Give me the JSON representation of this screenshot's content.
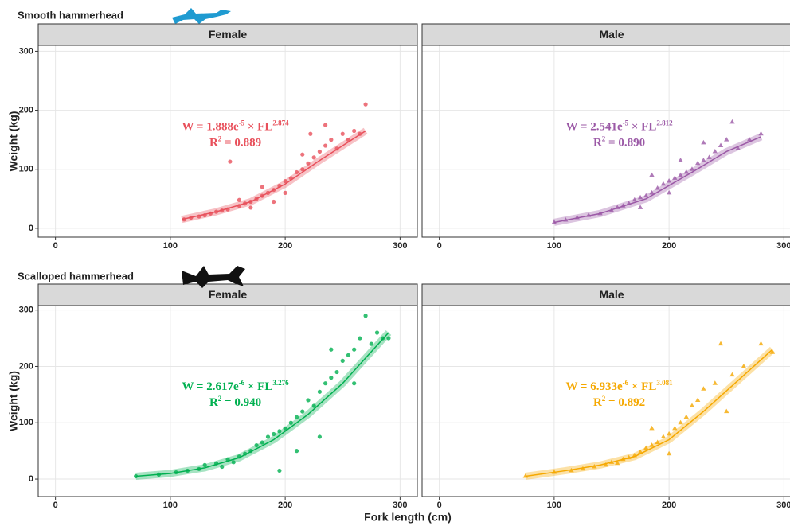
{
  "xlabel": "Fork length (cm)",
  "chart_data": [
    {
      "type": "scatter",
      "group": "Smooth hammerhead",
      "title": "Female",
      "ylabel": "Weight (kg)",
      "color": "#e8505b",
      "marker": "circle",
      "xlim": [
        -15,
        315
      ],
      "ylim": [
        -15,
        310
      ],
      "xticks": [
        0,
        100,
        200,
        300
      ],
      "yticks": [
        0,
        100,
        200,
        300
      ],
      "grid": true,
      "equation": [
        "W = 1.888e",
        "-5",
        " × FL",
        "2.874"
      ],
      "r2": [
        "R",
        "2",
        " = 0.889"
      ],
      "x": [
        112,
        118,
        125,
        130,
        135,
        140,
        145,
        150,
        152,
        160,
        165,
        170,
        175,
        180,
        185,
        190,
        195,
        200,
        205,
        210,
        215,
        220,
        225,
        230,
        235,
        240,
        245,
        250,
        255,
        260,
        265,
        270,
        235,
        222,
        190,
        180,
        170,
        160,
        200,
        215
      ],
      "values": [
        15,
        18,
        20,
        22,
        25,
        28,
        30,
        32,
        113,
        38,
        42,
        45,
        50,
        55,
        60,
        65,
        72,
        80,
        85,
        95,
        100,
        110,
        120,
        130,
        140,
        150,
        135,
        160,
        150,
        165,
        160,
        210,
        175,
        160,
        45,
        70,
        35,
        48,
        60,
        125
      ],
      "fit_x": [
        110,
        140,
        170,
        200,
        230,
        270
      ],
      "fit_y": [
        15,
        28,
        45,
        75,
        115,
        165
      ]
    },
    {
      "type": "scatter",
      "title": "Male",
      "color": "#9b59a6",
      "marker": "triangle",
      "xlim": [
        -15,
        315
      ],
      "ylim": [
        -15,
        310
      ],
      "xticks": [
        0,
        100,
        200,
        300
      ],
      "yticks": [
        0,
        100,
        200,
        300
      ],
      "grid": true,
      "equation": [
        "W = 2.541e",
        "-5",
        " × FL",
        "2.812"
      ],
      "r2": [
        "R",
        "2",
        " = 0.890"
      ],
      "x": [
        100,
        110,
        120,
        130,
        140,
        150,
        155,
        160,
        165,
        170,
        175,
        180,
        185,
        190,
        195,
        200,
        205,
        210,
        215,
        220,
        225,
        230,
        235,
        240,
        245,
        250,
        255,
        260,
        270,
        280,
        175,
        200,
        210,
        185,
        230
      ],
      "values": [
        10,
        14,
        18,
        22,
        25,
        30,
        35,
        38,
        42,
        48,
        52,
        55,
        60,
        68,
        75,
        80,
        85,
        90,
        95,
        100,
        110,
        115,
        120,
        130,
        140,
        150,
        180,
        135,
        150,
        160,
        35,
        60,
        115,
        90,
        145
      ],
      "fit_x": [
        100,
        140,
        180,
        220,
        250,
        280
      ],
      "fit_y": [
        10,
        25,
        50,
        95,
        130,
        155
      ]
    },
    {
      "type": "scatter",
      "group": "Scalloped hammerhead",
      "title": "Female",
      "ylabel": "Weight (kg)",
      "color": "#00b050",
      "marker": "circle",
      "xlim": [
        -15,
        315
      ],
      "ylim": [
        -31,
        308
      ],
      "xticks": [
        0,
        100,
        200,
        300
      ],
      "yticks": [
        0,
        100,
        200,
        300
      ],
      "grid": true,
      "equation": [
        "W = 2.617e",
        "-6",
        " × FL",
        "3.276"
      ],
      "r2": [
        "R",
        "2",
        " = 0.940"
      ],
      "x": [
        70,
        90,
        105,
        115,
        125,
        130,
        140,
        145,
        150,
        155,
        160,
        165,
        170,
        175,
        180,
        185,
        190,
        195,
        200,
        205,
        210,
        215,
        220,
        225,
        230,
        235,
        240,
        245,
        250,
        255,
        260,
        265,
        270,
        275,
        280,
        285,
        290,
        230,
        195,
        240,
        210,
        260
      ],
      "values": [
        5,
        8,
        12,
        15,
        18,
        25,
        28,
        22,
        35,
        30,
        40,
        45,
        50,
        60,
        65,
        75,
        80,
        85,
        90,
        100,
        110,
        120,
        140,
        130,
        155,
        170,
        180,
        190,
        210,
        220,
        230,
        250,
        290,
        240,
        260,
        250,
        250,
        75,
        15,
        230,
        50,
        170
      ],
      "fit_x": [
        70,
        100,
        130,
        160,
        190,
        220,
        250,
        290
      ],
      "fit_y": [
        5,
        10,
        20,
        38,
        70,
        115,
        170,
        260
      ]
    },
    {
      "type": "scatter",
      "title": "Male",
      "color": "#f5a800",
      "marker": "triangle",
      "xlim": [
        -15,
        315
      ],
      "ylim": [
        -31,
        308
      ],
      "xticks": [
        0,
        100,
        200,
        300
      ],
      "yticks": [
        0,
        100,
        200,
        300
      ],
      "grid": true,
      "equation": [
        "W = 6.933e",
        "-6",
        " × FL",
        "3.081"
      ],
      "r2": [
        "R",
        "2",
        " = 0.892"
      ],
      "x": [
        75,
        100,
        115,
        125,
        135,
        145,
        150,
        155,
        160,
        165,
        170,
        175,
        180,
        185,
        190,
        195,
        200,
        205,
        210,
        215,
        220,
        225,
        230,
        240,
        245,
        250,
        255,
        265,
        280,
        290,
        200,
        185
      ],
      "values": [
        5,
        12,
        15,
        18,
        22,
        25,
        30,
        28,
        35,
        38,
        42,
        48,
        55,
        60,
        65,
        75,
        80,
        90,
        100,
        110,
        130,
        140,
        160,
        170,
        240,
        120,
        185,
        200,
        240,
        225,
        45,
        90
      ],
      "fit_x": [
        75,
        110,
        140,
        170,
        200,
        230,
        260,
        290
      ],
      "fit_y": [
        5,
        15,
        25,
        40,
        70,
        120,
        175,
        230
      ]
    }
  ]
}
